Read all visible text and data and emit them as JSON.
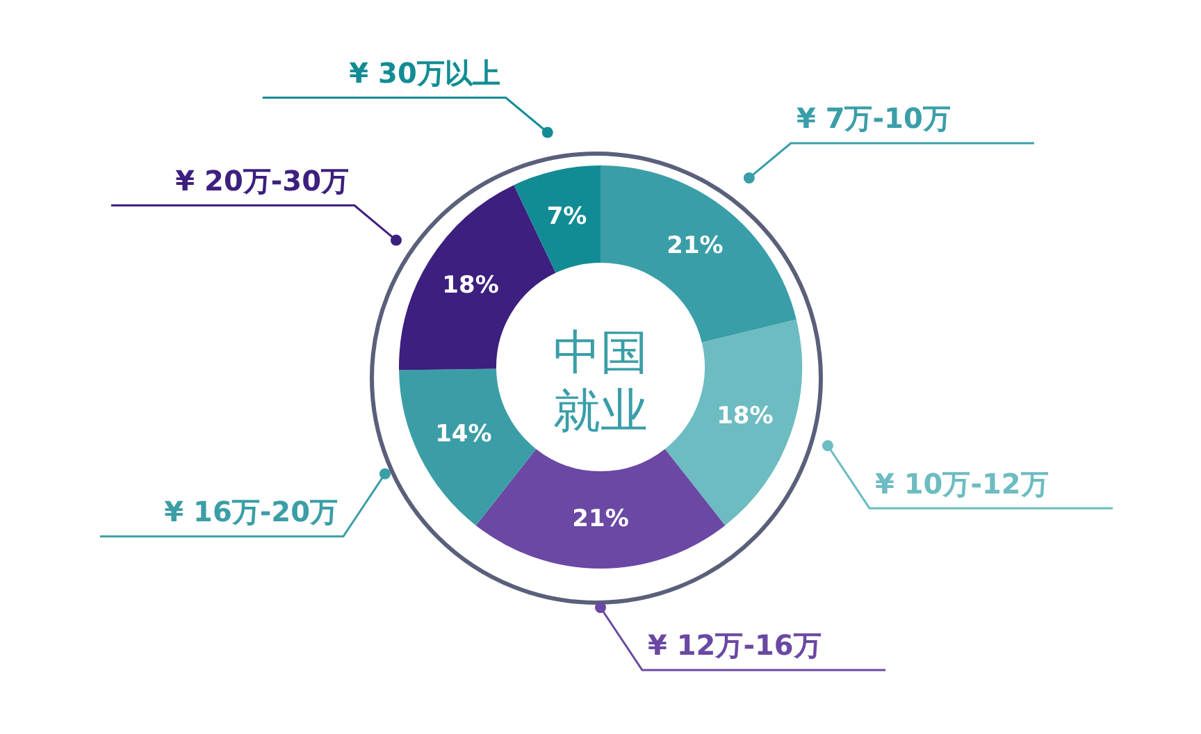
{
  "chart_data": {
    "type": "donut",
    "title": "中国就业",
    "categories": [
      "¥ 7万-10万",
      "¥ 10万-12万",
      "¥ 12万-16万",
      "¥ 16万-20万",
      "¥ 20万-30万",
      "¥ 30万以上"
    ],
    "values": [
      21,
      18,
      21,
      14,
      18,
      7
    ],
    "value_labels": [
      "21%",
      "18%",
      "21%",
      "14%",
      "18%",
      "7%"
    ],
    "colors": [
      "#3a9ea8",
      "#6dbcc1",
      "#6a48a3",
      "#3b9ea6",
      "#3d1f7f",
      "#128c94"
    ],
    "legend": false
  }
}
